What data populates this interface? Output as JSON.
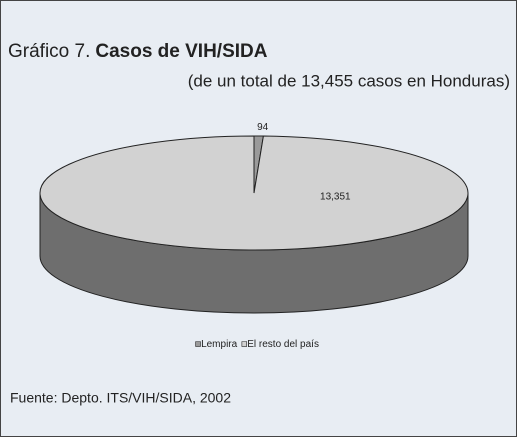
{
  "chart_data": {
    "type": "pie3d",
    "title_prefix": "Gráfico 7.",
    "title": "Casos de VIH/SIDA",
    "subtitle": "(de un total de 13,455 casos en Honduras)",
    "source": "Fuente: Depto. ITS/VIH/SIDA, 2002",
    "categories": [
      "Lempira",
      "El resto del país"
    ],
    "values": [
      94,
      13351
    ],
    "value_labels": [
      "94",
      "13,351"
    ],
    "colors": [
      "#9a9a9a",
      "#d2d2d2"
    ],
    "side_color": "#6e6e6e",
    "legend": "bottom"
  }
}
